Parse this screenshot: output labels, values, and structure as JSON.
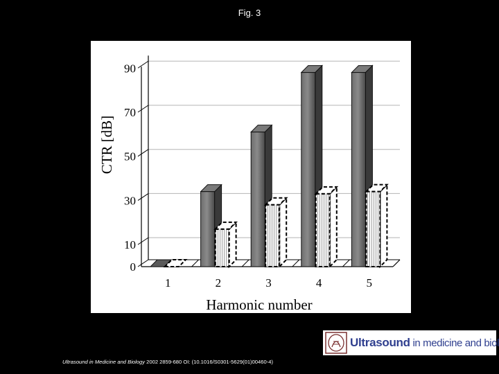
{
  "figure_title": "Fig. 3",
  "citation": {
    "journal": "Ultrasound in Medicine and Biology",
    "details": " 2002 2859-680 OI: (10.1016/S0301-5629(01)00460-4)"
  },
  "logo": {
    "strong": "Ultrasound",
    "rest": " in medicine and biology"
  },
  "colors": {
    "bar_dark": "#5a5a5a",
    "bar_dark_shade": "#3a3a3a",
    "bar_hatched_outline": "#000000",
    "logo_text": "#2f3f8f"
  },
  "chart_data": {
    "type": "bar",
    "xlabel": "Harmonic number",
    "ylabel": "CTR [dB]",
    "categories": [
      "1",
      "2",
      "3",
      "4",
      "5"
    ],
    "y_ticks": [
      "0",
      "10",
      "30",
      "50",
      "70",
      "90"
    ],
    "ylim": [
      0,
      90
    ],
    "grid": true,
    "legend": "none",
    "series": [
      {
        "style": "solid-dark",
        "values": [
          0,
          34,
          61,
          88,
          88
        ]
      },
      {
        "style": "dashed-hatched",
        "values": [
          0,
          17,
          28,
          33,
          34
        ]
      }
    ]
  }
}
